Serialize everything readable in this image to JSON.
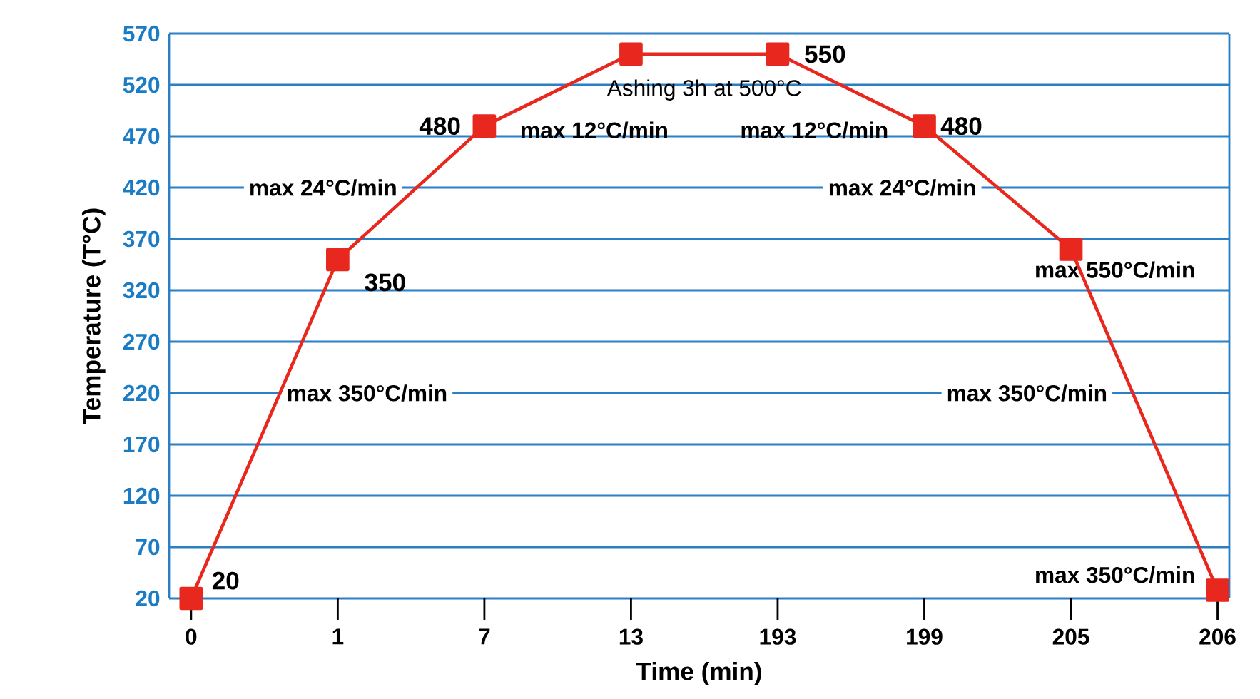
{
  "chart_data": {
    "type": "line",
    "xlabel": "Time (min)",
    "ylabel": "Temperature (T°C)",
    "categories": [
      "0",
      "1",
      "7",
      "13",
      "193",
      "199",
      "205",
      "206"
    ],
    "series": [
      {
        "color": "#e8281e",
        "values": [
          20,
          350,
          480,
          550,
          550,
          480,
          360,
          28
        ],
        "value_labels": [
          "20",
          "350",
          "480",
          null,
          "550",
          "480",
          null,
          null
        ]
      }
    ],
    "ylim": [
      20,
      570
    ],
    "yticks": [
      20,
      70,
      120,
      170,
      220,
      270,
      320,
      370,
      420,
      470,
      520,
      570
    ],
    "grid": "y",
    "marker": "square",
    "line_style": "solid",
    "annotations": [
      "Ashing 3h at 500°C",
      "max 12°C/min",
      "max 12°C/min",
      "max 24°C/min",
      "max 24°C/min",
      "max 350°C/min",
      "max 350°C/min",
      "max 550°C/min",
      "max 350°C/min"
    ]
  }
}
